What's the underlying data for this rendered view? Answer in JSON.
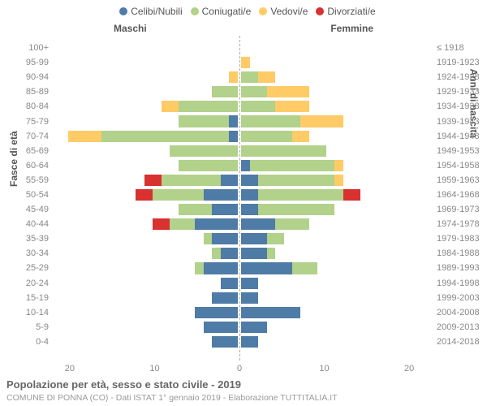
{
  "legend": {
    "items": [
      {
        "label": "Celibi/Nubili",
        "color": "#4f7ba7"
      },
      {
        "label": "Coniugati/e",
        "color": "#b2d18b"
      },
      {
        "label": "Vedovi/e",
        "color": "#ffcb66"
      },
      {
        "label": "Divorziati/e",
        "color": "#d93030"
      }
    ]
  },
  "headers": {
    "male": "Maschi",
    "female": "Femmine"
  },
  "y_axis": {
    "left_title": "Fasce di età",
    "right_title": "Anni di nascita",
    "left_labels": [
      "100+",
      "95-99",
      "90-94",
      "85-89",
      "80-84",
      "75-79",
      "70-74",
      "65-69",
      "60-64",
      "55-59",
      "50-54",
      "45-49",
      "40-44",
      "35-39",
      "30-34",
      "25-29",
      "20-24",
      "15-19",
      "10-14",
      "5-9",
      "0-4"
    ],
    "right_labels": [
      "≤ 1918",
      "1919-1923",
      "1924-1928",
      "1929-1933",
      "1934-1938",
      "1939-1943",
      "1944-1948",
      "1949-1953",
      "1954-1958",
      "1959-1963",
      "1964-1968",
      "1969-1973",
      "1974-1978",
      "1979-1983",
      "1984-1988",
      "1989-1993",
      "1994-1998",
      "1999-2003",
      "2004-2008",
      "2009-2013",
      "2014-2018"
    ]
  },
  "x_axis": {
    "max": 22,
    "ticks": [
      20,
      10,
      0,
      10,
      20
    ]
  },
  "colors": {
    "celibi": "#4f7ba7",
    "coniugati": "#b2d18b",
    "vedovi": "#ffcb66",
    "divorziati": "#d93030",
    "grid": "#aaaaaa",
    "bg": "#ffffff",
    "text_muted": "#888888"
  },
  "rows": [
    {
      "m": {
        "cel": 0,
        "con": 0,
        "ved": 0,
        "div": 0
      },
      "f": {
        "cel": 0,
        "con": 0,
        "ved": 0,
        "div": 0
      }
    },
    {
      "m": {
        "cel": 0,
        "con": 0,
        "ved": 0,
        "div": 0
      },
      "f": {
        "cel": 0,
        "con": 0,
        "ved": 1,
        "div": 0
      }
    },
    {
      "m": {
        "cel": 0,
        "con": 0,
        "ved": 1,
        "div": 0
      },
      "f": {
        "cel": 0,
        "con": 2,
        "ved": 2,
        "div": 0
      }
    },
    {
      "m": {
        "cel": 0,
        "con": 3,
        "ved": 0,
        "div": 0
      },
      "f": {
        "cel": 0,
        "con": 3,
        "ved": 5,
        "div": 0
      }
    },
    {
      "m": {
        "cel": 0,
        "con": 7,
        "ved": 2,
        "div": 0
      },
      "f": {
        "cel": 0,
        "con": 4,
        "ved": 4,
        "div": 0
      }
    },
    {
      "m": {
        "cel": 1,
        "con": 6,
        "ved": 0,
        "div": 0
      },
      "f": {
        "cel": 0,
        "con": 7,
        "ved": 5,
        "div": 0
      }
    },
    {
      "m": {
        "cel": 1,
        "con": 15,
        "ved": 4,
        "div": 0
      },
      "f": {
        "cel": 0,
        "con": 6,
        "ved": 2,
        "div": 0
      }
    },
    {
      "m": {
        "cel": 0,
        "con": 8,
        "ved": 0,
        "div": 0
      },
      "f": {
        "cel": 0,
        "con": 10,
        "ved": 0,
        "div": 0
      }
    },
    {
      "m": {
        "cel": 0,
        "con": 7,
        "ved": 0,
        "div": 0
      },
      "f": {
        "cel": 1,
        "con": 10,
        "ved": 1,
        "div": 0
      }
    },
    {
      "m": {
        "cel": 2,
        "con": 7,
        "ved": 0,
        "div": 2
      },
      "f": {
        "cel": 2,
        "con": 9,
        "ved": 1,
        "div": 0
      }
    },
    {
      "m": {
        "cel": 4,
        "con": 6,
        "ved": 0,
        "div": 2
      },
      "f": {
        "cel": 2,
        "con": 10,
        "ved": 0,
        "div": 2
      }
    },
    {
      "m": {
        "cel": 3,
        "con": 4,
        "ved": 0,
        "div": 0
      },
      "f": {
        "cel": 2,
        "con": 9,
        "ved": 0,
        "div": 0
      }
    },
    {
      "m": {
        "cel": 5,
        "con": 3,
        "ved": 0,
        "div": 2
      },
      "f": {
        "cel": 4,
        "con": 4,
        "ved": 0,
        "div": 0
      }
    },
    {
      "m": {
        "cel": 3,
        "con": 1,
        "ved": 0,
        "div": 0
      },
      "f": {
        "cel": 3,
        "con": 2,
        "ved": 0,
        "div": 0
      }
    },
    {
      "m": {
        "cel": 2,
        "con": 1,
        "ved": 0,
        "div": 0
      },
      "f": {
        "cel": 3,
        "con": 1,
        "ved": 0,
        "div": 0
      }
    },
    {
      "m": {
        "cel": 4,
        "con": 1,
        "ved": 0,
        "div": 0
      },
      "f": {
        "cel": 6,
        "con": 3,
        "ved": 0,
        "div": 0
      }
    },
    {
      "m": {
        "cel": 2,
        "con": 0,
        "ved": 0,
        "div": 0
      },
      "f": {
        "cel": 2,
        "con": 0,
        "ved": 0,
        "div": 0
      }
    },
    {
      "m": {
        "cel": 3,
        "con": 0,
        "ved": 0,
        "div": 0
      },
      "f": {
        "cel": 2,
        "con": 0,
        "ved": 0,
        "div": 0
      }
    },
    {
      "m": {
        "cel": 5,
        "con": 0,
        "ved": 0,
        "div": 0
      },
      "f": {
        "cel": 7,
        "con": 0,
        "ved": 0,
        "div": 0
      }
    },
    {
      "m": {
        "cel": 4,
        "con": 0,
        "ved": 0,
        "div": 0
      },
      "f": {
        "cel": 3,
        "con": 0,
        "ved": 0,
        "div": 0
      }
    },
    {
      "m": {
        "cel": 3,
        "con": 0,
        "ved": 0,
        "div": 0
      },
      "f": {
        "cel": 2,
        "con": 0,
        "ved": 0,
        "div": 0
      }
    }
  ],
  "title": "Popolazione per età, sesso e stato civile - 2019",
  "subtitle": "COMUNE DI PONNA (CO) - Dati ISTAT 1° gennaio 2019 - Elaborazione TUTTITALIA.IT"
}
